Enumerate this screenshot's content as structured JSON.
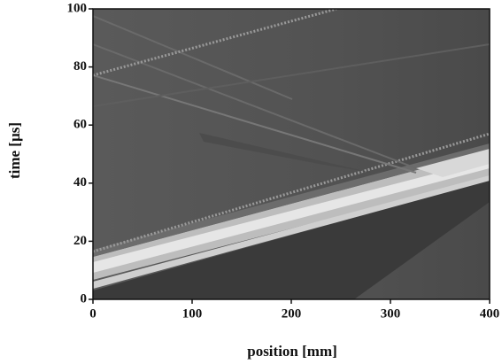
{
  "chart_data": {
    "type": "contour",
    "x_label": "position [mm]",
    "y_label": "time [µs]",
    "xlim": [
      0,
      400
    ],
    "xticks": [
      0,
      100,
      200,
      300,
      400
    ],
    "ylim": [
      0,
      100
    ],
    "yticks": [
      0,
      20,
      40,
      60,
      80,
      100
    ]
  }
}
